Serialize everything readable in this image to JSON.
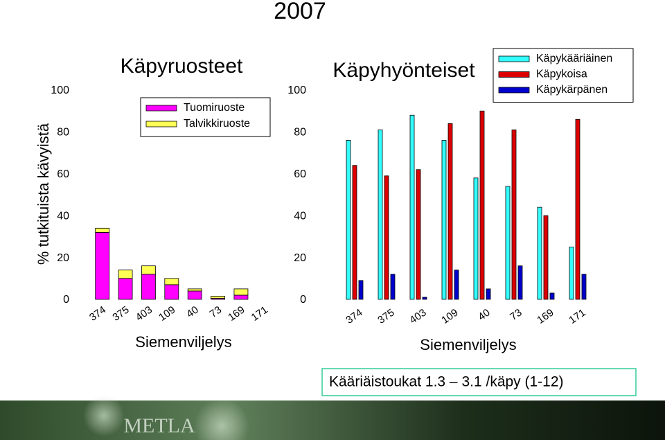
{
  "title": "2007",
  "ylabel": "% tutkituista kävyistä",
  "annotation": "Kääriäistoukat 1.3 – 3.1 /käpy (1-12)",
  "logo": "METLA",
  "chart_data": [
    {
      "type": "bar",
      "stacked": true,
      "title": "Käpyruosteet",
      "xlabel": "Siemenviljelys",
      "categories": [
        "374",
        "375",
        "403",
        "109",
        "40",
        "73",
        "169",
        "171"
      ],
      "series": [
        {
          "name": "Tuomiruoste",
          "color": "#ff00ff",
          "values": [
            32,
            10,
            12,
            7,
            4,
            0.5,
            2,
            0
          ]
        },
        {
          "name": "Talvikkiruoste",
          "color": "#ffff55",
          "values": [
            2,
            4,
            4,
            3,
            1,
            1,
            3,
            0
          ]
        }
      ],
      "ylim": [
        0,
        100
      ],
      "yticks": [
        0,
        20,
        40,
        60,
        80,
        100
      ]
    },
    {
      "type": "bar",
      "stacked": false,
      "title": "Käpyhyönteiset",
      "xlabel": "Siemenviljelys",
      "categories": [
        "374",
        "375",
        "403",
        "109",
        "40",
        "73",
        "169",
        "171"
      ],
      "series": [
        {
          "name": "Käpykääriäinen",
          "color": "#33ffff",
          "values": [
            76,
            81,
            88,
            76,
            58,
            54,
            44,
            25
          ]
        },
        {
          "name": "Käpykoisa",
          "color": "#dd0000",
          "values": [
            64,
            59,
            62,
            84,
            90,
            81,
            40,
            86
          ]
        },
        {
          "name": "Käpykärpänen",
          "color": "#0000cc",
          "values": [
            9,
            12,
            1,
            14,
            5,
            16,
            3,
            12
          ]
        }
      ],
      "ylim": [
        0,
        100
      ],
      "yticks": [
        0,
        20,
        40,
        60,
        80,
        100
      ]
    }
  ]
}
